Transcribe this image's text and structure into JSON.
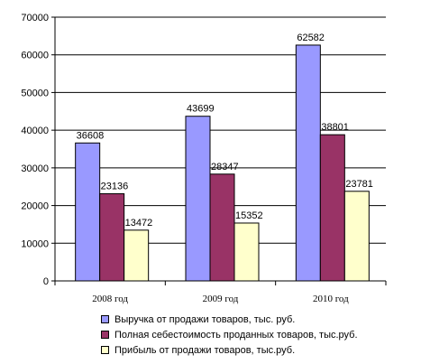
{
  "chart_data": {
    "type": "bar",
    "title": "",
    "xlabel": "",
    "ylabel": "",
    "categories": [
      "2008 год",
      "2009 год",
      "2010 год"
    ],
    "ylim": [
      0,
      70000
    ],
    "yticks": [
      0,
      10000,
      20000,
      30000,
      40000,
      50000,
      60000,
      70000
    ],
    "grid": "horizontal",
    "legend_position": "bottom",
    "series": [
      {
        "name": "Выручка от продажи товаров, тыс. руб.",
        "values": [
          36608,
          43699,
          62582
        ],
        "color": "#9999ff"
      },
      {
        "name": "Полная себестоимость проданных товаров, тыс.руб.",
        "values": [
          23136,
          28347,
          38801
        ],
        "color": "#993366"
      },
      {
        "name": "Прибыль от продажи товаров, тыс.руб.",
        "values": [
          13472,
          15352,
          23781
        ],
        "color": "#ffffcc"
      }
    ]
  }
}
